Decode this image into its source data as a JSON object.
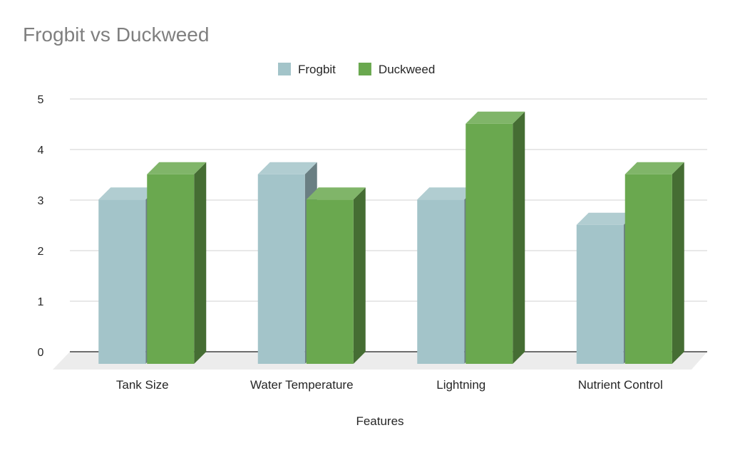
{
  "chart_data": {
    "type": "bar",
    "title": "Frogbit vs Duckweed",
    "xlabel": "Features",
    "ylabel": "",
    "categories": [
      "Tank Size",
      "Water Temperature",
      "Lightning",
      "Nutrient Control"
    ],
    "series": [
      {
        "name": "Frogbit",
        "values": [
          3.25,
          3.75,
          3.25,
          2.75
        ],
        "color": "#a3c4c9"
      },
      {
        "name": "Duckweed",
        "values": [
          3.75,
          3.25,
          4.75,
          3.75
        ],
        "color": "#6aa84f"
      }
    ],
    "ylim": [
      0,
      5
    ],
    "yticks": [
      "0",
      "1",
      "2",
      "3",
      "4",
      "5"
    ],
    "grid": true,
    "legend": "top-center",
    "style": "3d-column"
  }
}
